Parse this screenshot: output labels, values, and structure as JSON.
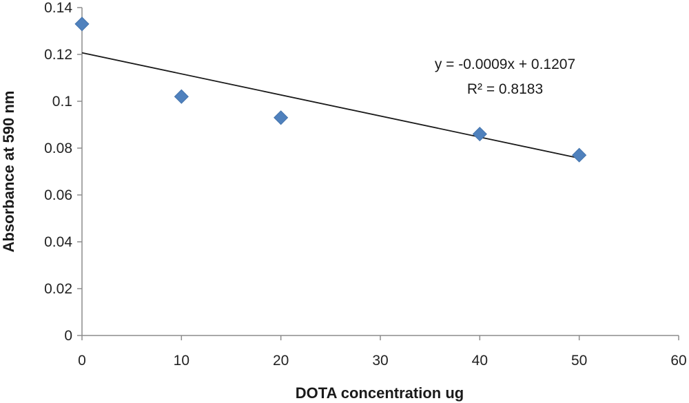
{
  "chart_data": {
    "type": "scatter",
    "title": "",
    "xlabel": "DOTA concentration ug",
    "ylabel": "Absorbance at 590 nm",
    "xlim": [
      0,
      60
    ],
    "ylim": [
      0,
      0.14
    ],
    "x_ticks": [
      0,
      10,
      20,
      30,
      40,
      50,
      60
    ],
    "x_tick_labels": [
      "0",
      "10",
      "20",
      "30",
      "40",
      "50",
      "60"
    ],
    "y_ticks": [
      0,
      0.02,
      0.04,
      0.06,
      0.08,
      0.1,
      0.12,
      0.14
    ],
    "y_tick_labels": [
      "0",
      "0.02",
      "0.04",
      "0.06",
      "0.08",
      "0.1",
      "0.12",
      "0.14"
    ],
    "grid": false,
    "series": [
      {
        "marker": "diamond",
        "color": "#4f81bd",
        "points": [
          {
            "x": 0,
            "y": 0.133
          },
          {
            "x": 10,
            "y": 0.102
          },
          {
            "x": 20,
            "y": 0.093
          },
          {
            "x": 40,
            "y": 0.086
          },
          {
            "x": 50,
            "y": 0.077
          }
        ]
      }
    ],
    "trendline": {
      "slope": -0.0009,
      "intercept": 0.1207,
      "x_range": [
        0,
        50
      ],
      "color": "#1a1a1a",
      "equation": "y = -0.0009x + 0.1207",
      "r_squared": "R² = 0.8183"
    }
  }
}
